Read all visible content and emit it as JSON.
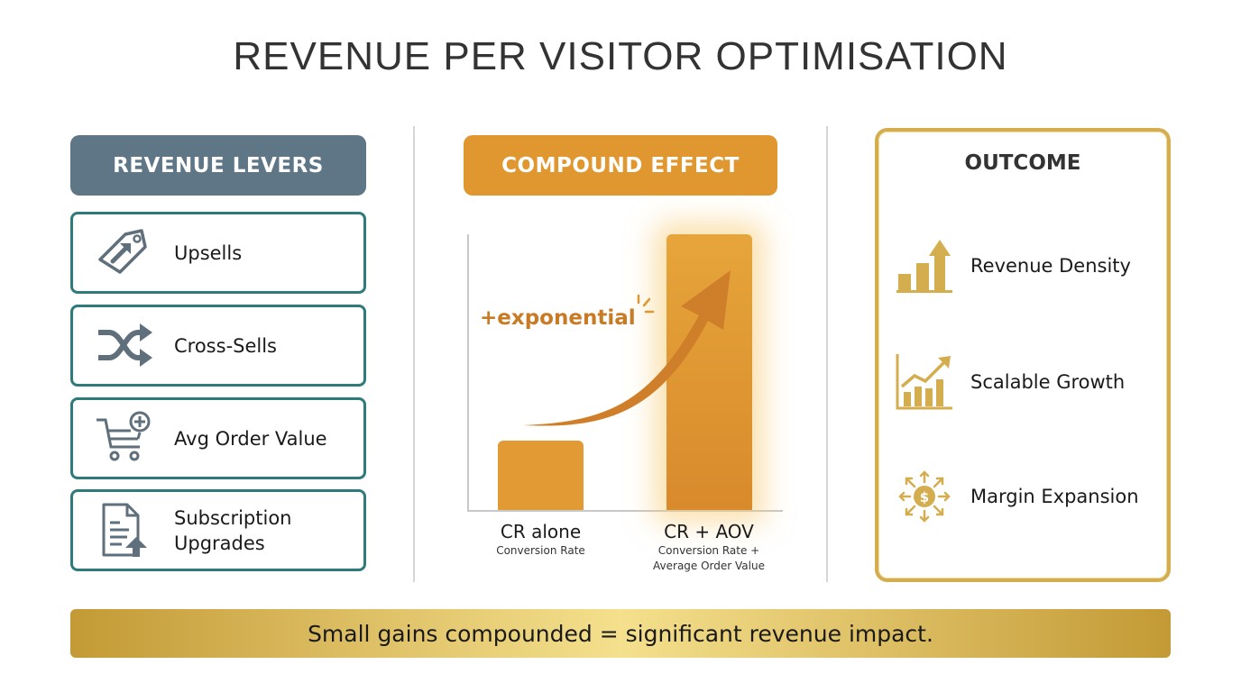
{
  "title": "REVENUE PER VISITOR OPTIMISATION",
  "colors": {
    "slate": "#5f7687",
    "teal_border": "#2f7a7a",
    "orange": "#e1972f",
    "gold": "#d4ad4f"
  },
  "levers": {
    "header": "REVENUE LEVERS",
    "items": [
      {
        "label": "Upsells",
        "icon": "price-tag-arrow-icon"
      },
      {
        "label": "Cross-Sells",
        "icon": "shuffle-icon"
      },
      {
        "label": "Avg Order Value",
        "icon": "cart-plus-icon"
      },
      {
        "label_line1": "Subscription",
        "label_line2": "Upgrades",
        "icon": "document-upgrade-icon"
      }
    ]
  },
  "compound": {
    "header": "COMPOUND EFFECT",
    "annotation": "+exponential"
  },
  "chart_data": {
    "type": "bar",
    "title": "COMPOUND EFFECT",
    "categories": [
      "CR alone",
      "CR + AOV"
    ],
    "category_subtitles": [
      "Conversion Rate",
      "Conversion Rate + Average Order Value"
    ],
    "values": [
      25,
      100
    ],
    "xlabel": "",
    "ylabel": "",
    "annotations": [
      "+exponential"
    ],
    "grid": false,
    "legend": null,
    "note": "Illustrative relative bar heights (no axis values shown)"
  },
  "xlabels": [
    {
      "main": "CR alone",
      "sub1": "Conversion Rate",
      "sub2": ""
    },
    {
      "main": "CR + AOV",
      "sub1": "Conversion Rate +",
      "sub2": "Average Order Value"
    }
  ],
  "outcome": {
    "header": "OUTCOME",
    "items": [
      {
        "label": "Revenue Density",
        "icon": "bar-chart-up-icon"
      },
      {
        "label": "Scalable Growth",
        "icon": "growth-chart-icon"
      },
      {
        "label": "Margin Expansion",
        "icon": "dollar-expand-icon"
      }
    ]
  },
  "footer": "Small gains compounded = significant revenue impact."
}
